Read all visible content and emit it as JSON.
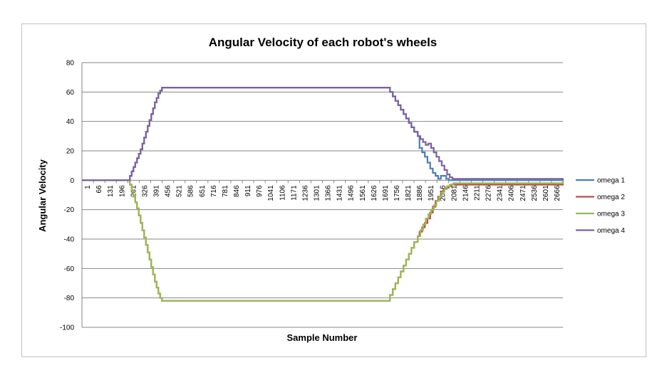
{
  "chart_data": {
    "type": "line",
    "title": "Angular Velocity of each robot's wheels",
    "xlabel": "Sample Number",
    "ylabel": "Angular Velocity",
    "ylim": [
      -100,
      80
    ],
    "yticks": [
      80,
      60,
      40,
      20,
      0,
      -20,
      -40,
      -60,
      -80,
      -100
    ],
    "xlim": [
      1,
      2700
    ],
    "xticks": [
      "1",
      "66",
      "131",
      "196",
      "261",
      "326",
      "391",
      "456",
      "521",
      "586",
      "651",
      "716",
      "781",
      "846",
      "911",
      "976",
      "1041",
      "1106",
      "1171",
      "1236",
      "1301",
      "1366",
      "1431",
      "1496",
      "1561",
      "1626",
      "1691",
      "1756",
      "1821",
      "1886",
      "1951",
      "2016",
      "2081",
      "2146",
      "2211",
      "2276",
      "2341",
      "2406",
      "2471",
      "2536",
      "2601",
      "2666"
    ],
    "grid": true,
    "legend_position": "right",
    "colors": {
      "omega 1": "#4a7ebb",
      "omega 2": "#be4b48",
      "omega 3": "#98b954",
      "omega 4": "#7d60a0",
      "gridline": "#868686",
      "frame": "#bfbfbf"
    },
    "series": [
      {
        "name": "omega 1",
        "x": [
          1,
          260,
          270,
          280,
          290,
          300,
          310,
          320,
          330,
          340,
          350,
          360,
          370,
          380,
          390,
          400,
          410,
          420,
          430,
          440,
          450,
          1720,
          1730,
          1745,
          1760,
          1775,
          1790,
          1805,
          1820,
          1835,
          1850,
          1865,
          1885,
          1895,
          1910,
          1925,
          1940,
          1955,
          1970,
          1985,
          2000,
          2015,
          2030,
          2045,
          2060,
          2070,
          2700
        ],
        "y": [
          0,
          0,
          3,
          6,
          9,
          12,
          15,
          18,
          21,
          25,
          29,
          33,
          37,
          41,
          45,
          49,
          53,
          56,
          59,
          61,
          63,
          63,
          60,
          57,
          54,
          51,
          48,
          45,
          42,
          39,
          36,
          33,
          30,
          22,
          19,
          16,
          12,
          8,
          5,
          3,
          1,
          3,
          3,
          1,
          0,
          0,
          0
        ]
      },
      {
        "name": "omega 2",
        "x": [
          1,
          260,
          270,
          280,
          290,
          300,
          310,
          320,
          330,
          340,
          350,
          360,
          370,
          380,
          390,
          400,
          410,
          420,
          430,
          440,
          450,
          1720,
          1730,
          1745,
          1760,
          1775,
          1790,
          1805,
          1820,
          1835,
          1850,
          1865,
          1885,
          1895,
          1910,
          1925,
          1940,
          1955,
          1970,
          1985,
          2000,
          2015,
          2030,
          2045,
          2060,
          2075,
          2700
        ],
        "y": [
          0,
          0,
          -3,
          -7,
          -11,
          -15,
          -19,
          -24,
          -29,
          -34,
          -39,
          -44,
          -49,
          -54,
          -59,
          -64,
          -69,
          -73,
          -77,
          -80,
          -82,
          -82,
          -78,
          -74,
          -70,
          -66,
          -62,
          -58,
          -54,
          -50,
          -46,
          -42,
          -38,
          -35,
          -32,
          -29,
          -26,
          -22,
          -18,
          -14,
          -11,
          -8,
          -6,
          -5,
          -4,
          -3,
          0
        ]
      },
      {
        "name": "omega 3",
        "x": [
          1,
          260,
          270,
          280,
          290,
          300,
          310,
          320,
          330,
          340,
          350,
          360,
          370,
          380,
          390,
          400,
          410,
          420,
          430,
          440,
          450,
          1720,
          1730,
          1745,
          1760,
          1775,
          1790,
          1805,
          1820,
          1835,
          1850,
          1865,
          1885,
          1900,
          1915,
          1930,
          1945,
          1960,
          1975,
          1990,
          2005,
          2020,
          2035,
          2050,
          2065,
          2085,
          2700
        ],
        "y": [
          0,
          0,
          -3,
          -7,
          -11,
          -15,
          -19,
          -24,
          -29,
          -34,
          -39,
          -44,
          -49,
          -54,
          -59,
          -64,
          -69,
          -73,
          -77,
          -80,
          -82,
          -82,
          -78,
          -74,
          -70,
          -66,
          -62,
          -58,
          -54,
          -50,
          -46,
          -42,
          -38,
          -34,
          -30,
          -26,
          -23,
          -20,
          -17,
          -14,
          -11,
          -8,
          -6,
          -4,
          -3,
          -2,
          0
        ]
      },
      {
        "name": "omega 4",
        "x": [
          1,
          260,
          270,
          280,
          290,
          300,
          310,
          320,
          330,
          340,
          350,
          360,
          370,
          380,
          390,
          400,
          410,
          420,
          430,
          440,
          450,
          1720,
          1730,
          1745,
          1760,
          1775,
          1790,
          1805,
          1820,
          1835,
          1850,
          1865,
          1885,
          1900,
          1915,
          1930,
          1945,
          1960,
          1975,
          1990,
          2005,
          2020,
          2035,
          2050,
          2065,
          2080,
          2700
        ],
        "y": [
          0,
          0,
          3,
          6,
          9,
          12,
          15,
          18,
          21,
          25,
          29,
          33,
          37,
          41,
          45,
          49,
          53,
          56,
          59,
          61,
          63,
          63,
          60,
          57,
          54,
          51,
          48,
          45,
          42,
          39,
          36,
          33,
          30,
          28,
          26,
          24,
          25,
          22,
          19,
          16,
          13,
          10,
          7,
          4,
          2,
          1,
          0
        ]
      }
    ]
  }
}
